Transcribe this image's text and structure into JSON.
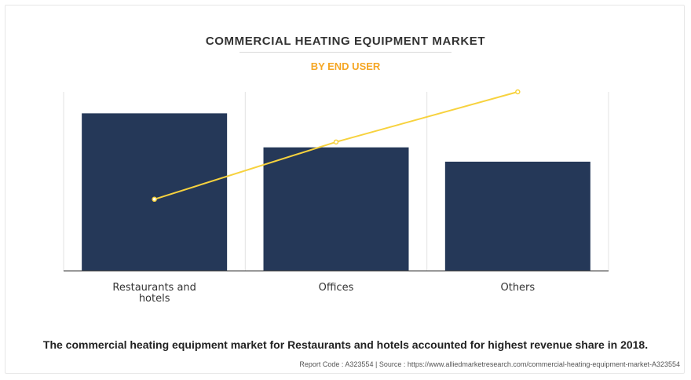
{
  "header": {
    "title": "COMMERCIAL HEATING EQUIPMENT MARKET",
    "subtitle": "BY END USER"
  },
  "chart_data": {
    "type": "bar",
    "categories": [
      "Restaurants and hotels",
      "Offices",
      "Others"
    ],
    "category_lines": [
      [
        "Restaurants and",
        "hotels"
      ],
      [
        "Offices"
      ],
      [
        "Others"
      ]
    ],
    "values": [
      88,
      69,
      61
    ],
    "line_values": [
      40,
      72,
      100
    ],
    "ylim": [
      0,
      100
    ],
    "grid": "vertical",
    "legend": "none",
    "colors": {
      "bar": "#253858",
      "line": "#f7d23e",
      "grid": "#e3e3e3",
      "axis": "#333333"
    }
  },
  "footer": {
    "caption": "The commercial heating equipment market for Restaurants and hotels accounted for highest revenue share in 2018.",
    "report_code": "Report Code : A323554",
    "separator": "|",
    "source": "Source : https://www.alliedmarketresearch.com/commercial-heating-equipment-market-A323554"
  }
}
